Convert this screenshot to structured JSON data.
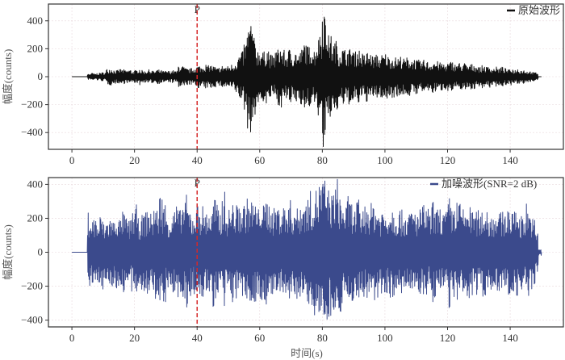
{
  "chart_data": [
    {
      "type": "line",
      "ylabel": "幅度(counts)",
      "xlabel": "",
      "xlim": [
        -7.5,
        157
      ],
      "ylim": [
        -520,
        520
      ],
      "xticks": [
        0,
        20,
        40,
        60,
        80,
        100,
        120,
        140
      ],
      "yticks": [
        -400,
        -200,
        0,
        200,
        400
      ],
      "grid": true,
      "legend_position": "top-right",
      "marker": {
        "x": 40,
        "label": "P",
        "color": "#d62728"
      },
      "series": [
        {
          "name": "原始波形",
          "color": "#111111",
          "time_step_s": 1,
          "peak_amplitude": [
            0,
            0,
            0,
            0,
            0,
            20,
            25,
            20,
            25,
            30,
            30,
            55,
            60,
            50,
            45,
            55,
            50,
            45,
            50,
            40,
            45,
            60,
            45,
            40,
            50,
            45,
            40,
            50,
            45,
            40,
            40,
            40,
            45,
            40,
            85,
            75,
            60,
            55,
            60,
            70,
            80,
            75,
            90,
            80,
            85,
            75,
            60,
            70,
            80,
            75,
            80,
            90,
            120,
            160,
            180,
            250,
            380,
            400,
            280,
            200,
            200,
            180,
            210,
            160,
            150,
            200,
            220,
            190,
            170,
            200,
            180,
            190,
            160,
            200,
            260,
            220,
            230,
            200,
            280,
            350,
            520,
            380,
            300,
            250,
            260,
            200,
            210,
            200,
            200,
            220,
            180,
            200,
            170,
            160,
            180,
            170,
            150,
            160,
            150,
            160,
            170,
            150,
            150,
            140,
            140,
            150,
            130,
            140,
            130,
            130,
            120,
            110,
            120,
            110,
            100,
            120,
            110,
            100,
            100,
            90,
            100,
            110,
            90,
            100,
            90,
            100,
            80,
            90,
            90,
            80,
            70,
            80,
            70,
            80,
            60,
            70,
            60,
            70,
            60,
            50,
            60,
            50,
            60,
            50,
            50,
            40,
            40,
            30,
            30,
            0
          ]
        }
      ]
    },
    {
      "type": "line",
      "ylabel": "幅度(counts)",
      "xlabel": "时间(s)",
      "xlim": [
        -7.5,
        157
      ],
      "ylim": [
        -440,
        440
      ],
      "xticks": [
        0,
        20,
        40,
        60,
        80,
        100,
        120,
        140
      ],
      "yticks": [
        -400,
        -200,
        0,
        200,
        400
      ],
      "grid": true,
      "legend_position": "top-right",
      "marker": {
        "x": 40,
        "label": "P",
        "color": "#d62728"
      },
      "series": [
        {
          "name": "加噪波形(SNR=2 dB)",
          "color": "#3b4a8c",
          "time_step_s": 1,
          "peak_amplitude": [
            0,
            0,
            0,
            0,
            0,
            240,
            200,
            210,
            180,
            220,
            170,
            200,
            210,
            190,
            230,
            200,
            240,
            210,
            190,
            250,
            280,
            200,
            220,
            240,
            260,
            230,
            290,
            260,
            350,
            300,
            240,
            220,
            260,
            280,
            250,
            300,
            340,
            270,
            230,
            260,
            300,
            280,
            240,
            260,
            230,
            330,
            280,
            240,
            360,
            250,
            260,
            300,
            280,
            290,
            280,
            300,
            320,
            310,
            300,
            260,
            340,
            280,
            320,
            300,
            260,
            290,
            270,
            300,
            260,
            310,
            270,
            280,
            260,
            310,
            300,
            330,
            360,
            370,
            380,
            420,
            440,
            400,
            380,
            350,
            440,
            360,
            300,
            280,
            330,
            300,
            260,
            310,
            250,
            280,
            300,
            290,
            300,
            280,
            250,
            260,
            240,
            270,
            280,
            250,
            260,
            250,
            240,
            230,
            260,
            250,
            240,
            260,
            280,
            270,
            230,
            300,
            260,
            270,
            250,
            240,
            330,
            270,
            290,
            310,
            290,
            260,
            280,
            270,
            240,
            250,
            230,
            260,
            270,
            220,
            240,
            250,
            230,
            240,
            250,
            270,
            230,
            280,
            260,
            220,
            230,
            300,
            240,
            200,
            120,
            20
          ]
        }
      ]
    }
  ]
}
